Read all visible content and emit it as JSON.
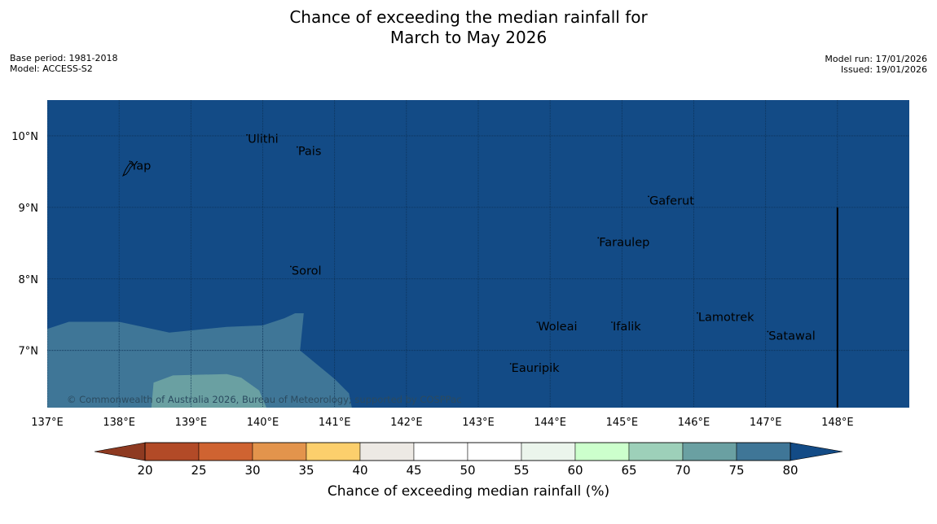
{
  "title": {
    "line1": "Chance of exceeding the median rainfall for",
    "line2": "March to May 2026"
  },
  "meta": {
    "base_period": "Base period: 1981-2018",
    "model": "Model: ACCESS-S2",
    "model_run": "Model run: 17/01/2026",
    "issued": "Issued: 19/01/2026"
  },
  "map": {
    "lon_range": [
      137,
      149
    ],
    "lat_range": [
      6.2,
      10.5
    ],
    "lon_ticks": [
      {
        "value": 137,
        "label": "137°E"
      },
      {
        "value": 138,
        "label": "138°E"
      },
      {
        "value": 139,
        "label": "139°E"
      },
      {
        "value": 140,
        "label": "140°E"
      },
      {
        "value": 141,
        "label": "141°E"
      },
      {
        "value": 142,
        "label": "142°E"
      },
      {
        "value": 143,
        "label": "143°E"
      },
      {
        "value": 144,
        "label": "144°E"
      },
      {
        "value": 145,
        "label": "145°E"
      },
      {
        "value": 146,
        "label": "146°E"
      },
      {
        "value": 147,
        "label": "147°E"
      },
      {
        "value": 148,
        "label": "148°E"
      }
    ],
    "lat_ticks": [
      {
        "value": 10,
        "label": "10°N"
      },
      {
        "value": 9,
        "label": "9°N"
      },
      {
        "value": 8,
        "label": "8°N"
      },
      {
        "value": 7,
        "label": "7°N"
      }
    ],
    "places": [
      {
        "name": "Ulithi",
        "lon": 139.78,
        "lat": 9.9
      },
      {
        "name": "Pais",
        "lon": 140.48,
        "lat": 9.73
      },
      {
        "name": "Yap",
        "lon": 138.15,
        "lat": 9.53
      },
      {
        "name": "Gaferut",
        "lon": 145.37,
        "lat": 9.04
      },
      {
        "name": "Faraulep",
        "lon": 144.67,
        "lat": 8.46
      },
      {
        "name": "Sorol",
        "lon": 140.39,
        "lat": 8.06
      },
      {
        "name": "Lamotrek",
        "lon": 146.05,
        "lat": 7.41
      },
      {
        "name": "Woleai",
        "lon": 143.82,
        "lat": 7.28
      },
      {
        "name": "Ifalik",
        "lon": 144.86,
        "lat": 7.28
      },
      {
        "name": "Satawal",
        "lon": 147.03,
        "lat": 7.15
      },
      {
        "name": "Eauripik",
        "lon": 143.45,
        "lat": 6.7
      }
    ],
    "regions": [
      {
        "category": "70-75",
        "color": "#3f7697",
        "outline": [
          [
            137,
            6.2
          ],
          [
            137,
            7.3
          ],
          [
            137.3,
            7.4
          ],
          [
            138,
            7.4
          ],
          [
            138.7,
            7.25
          ],
          [
            139.5,
            7.33
          ],
          [
            140,
            7.35
          ],
          [
            140.3,
            7.45
          ],
          [
            140.45,
            7.52
          ],
          [
            140.57,
            7.52
          ],
          [
            140.52,
            7.0
          ],
          [
            141.0,
            6.6
          ],
          [
            141.2,
            6.4
          ],
          [
            141.24,
            6.2
          ]
        ]
      },
      {
        "category": "65-70",
        "color": "#6aa0a2",
        "outline": [
          [
            138.45,
            6.2
          ],
          [
            138.48,
            6.55
          ],
          [
            138.75,
            6.65
          ],
          [
            139.5,
            6.67
          ],
          [
            139.7,
            6.62
          ],
          [
            139.95,
            6.44
          ],
          [
            140.05,
            6.2
          ]
        ]
      }
    ],
    "boundary_line": {
      "lon": 148,
      "lat_top": 9.0
    },
    "credit": "© Commonwealth of Australia 2026, Bureau of Meteorology; supported by COSPPac"
  },
  "colorbar": {
    "label": "Chance of exceeding median rainfall (%)",
    "ticks": [
      "20",
      "25",
      "30",
      "35",
      "40",
      "45",
      "50",
      "55",
      "60",
      "65",
      "70",
      "75",
      "80"
    ],
    "under_color": "#8e3a21",
    "over_color": "#134b86",
    "colors": [
      "#b24a27",
      "#cf6331",
      "#e3944c",
      "#fccf6c",
      "#ede9e4",
      "#ffffff",
      "#ffffff",
      "#ebf5ec",
      "#ccffcc",
      "#9dd0b9",
      "#6aa0a2",
      "#3f7697"
    ],
    "ocean_color": "#134b86"
  }
}
